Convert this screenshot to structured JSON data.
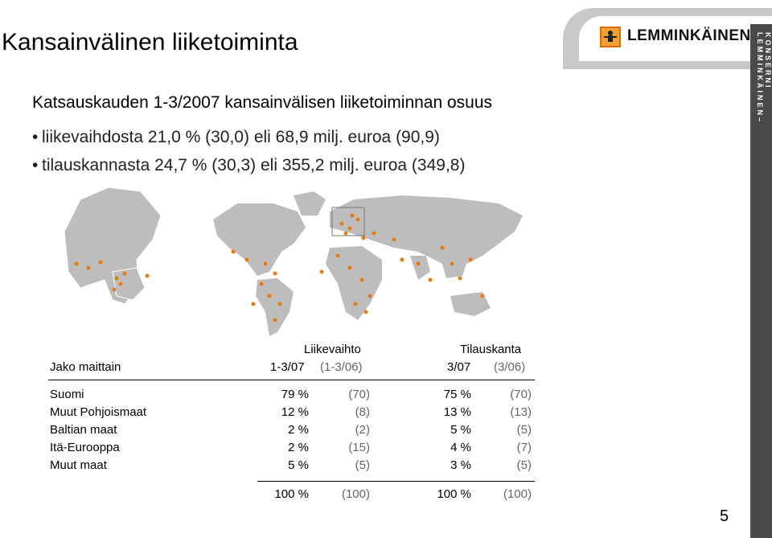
{
  "header": {
    "title": "Kansainvälinen liiketoiminta",
    "logo_text": "LEMMINKÄINEN",
    "side_text": "LEMMINKÄINEN–KONSERNI"
  },
  "content": {
    "subtitle": "Katsauskauden 1-3/2007 kansainvälisen liiketoiminnan osuus",
    "bullets": [
      "liikevaihdosta 21,0 % (30,0) eli 68,9 milj. euroa (90,9)",
      "tilauskannasta 24,7 % (30,3) eli 355,2 milj. euroa (349,8)"
    ]
  },
  "table": {
    "group_headers": [
      "Liikevaihto",
      "Tilauskanta"
    ],
    "row_header": "Jako maittain",
    "sub_headers": [
      "1-3/07",
      "(1-3/06)",
      "3/07",
      "(3/06)"
    ],
    "rows": [
      {
        "label": "Suomi",
        "v1": "79 %",
        "v2": "(70)",
        "v3": "75 %",
        "v4": "(70)"
      },
      {
        "label": "Muut Pohjoismaat",
        "v1": "12 %",
        "v2": "(8)",
        "v3": "13 %",
        "v4": "(13)"
      },
      {
        "label": "Baltian maat",
        "v1": "2 %",
        "v2": "(2)",
        "v3": "5 %",
        "v4": "(5)"
      },
      {
        "label": "Itä-Eurooppa",
        "v1": "2 %",
        "v2": "(15)",
        "v3": "4 %",
        "v4": "(7)"
      },
      {
        "label": "Muut maat",
        "v1": "5 %",
        "v2": "(5)",
        "v3": "3 %",
        "v4": "(5)"
      }
    ],
    "total": {
      "v1": "100 %",
      "v2": "(100)",
      "v3": "100 %",
      "v4": "(100)"
    }
  },
  "footer": {
    "page_number": "5"
  },
  "colors": {
    "accent": "#e87d0d",
    "map_land": "#bdbdbd",
    "side_bar": "#4a4a4a"
  }
}
